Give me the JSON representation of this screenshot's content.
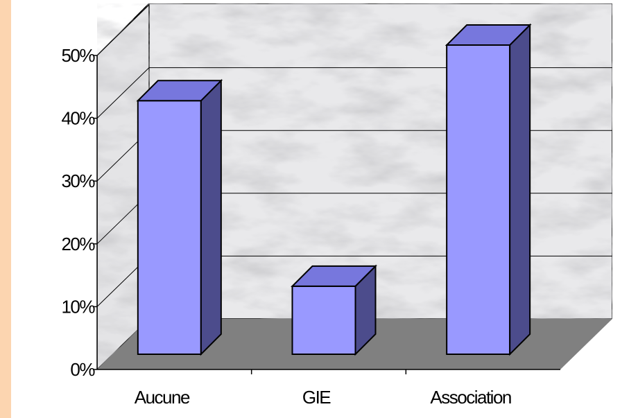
{
  "chart_data": {
    "type": "bar",
    "categories": [
      "Aucune",
      "GIE",
      "Association"
    ],
    "values": [
      41,
      11,
      50
    ],
    "ylim": [
      0,
      50
    ],
    "yticks": [
      "0%",
      "10%",
      "20%",
      "30%",
      "40%",
      "50%"
    ],
    "ytick_values": [
      0,
      10,
      20,
      30,
      40,
      50
    ],
    "grid": true,
    "legend": "none",
    "style": "3d"
  },
  "colors": {
    "background": "#fcd5b0",
    "bar_front": "#9999ff",
    "bar_top": "#7777dd",
    "bar_side": "#4c4c8c",
    "floor": "#808080"
  }
}
